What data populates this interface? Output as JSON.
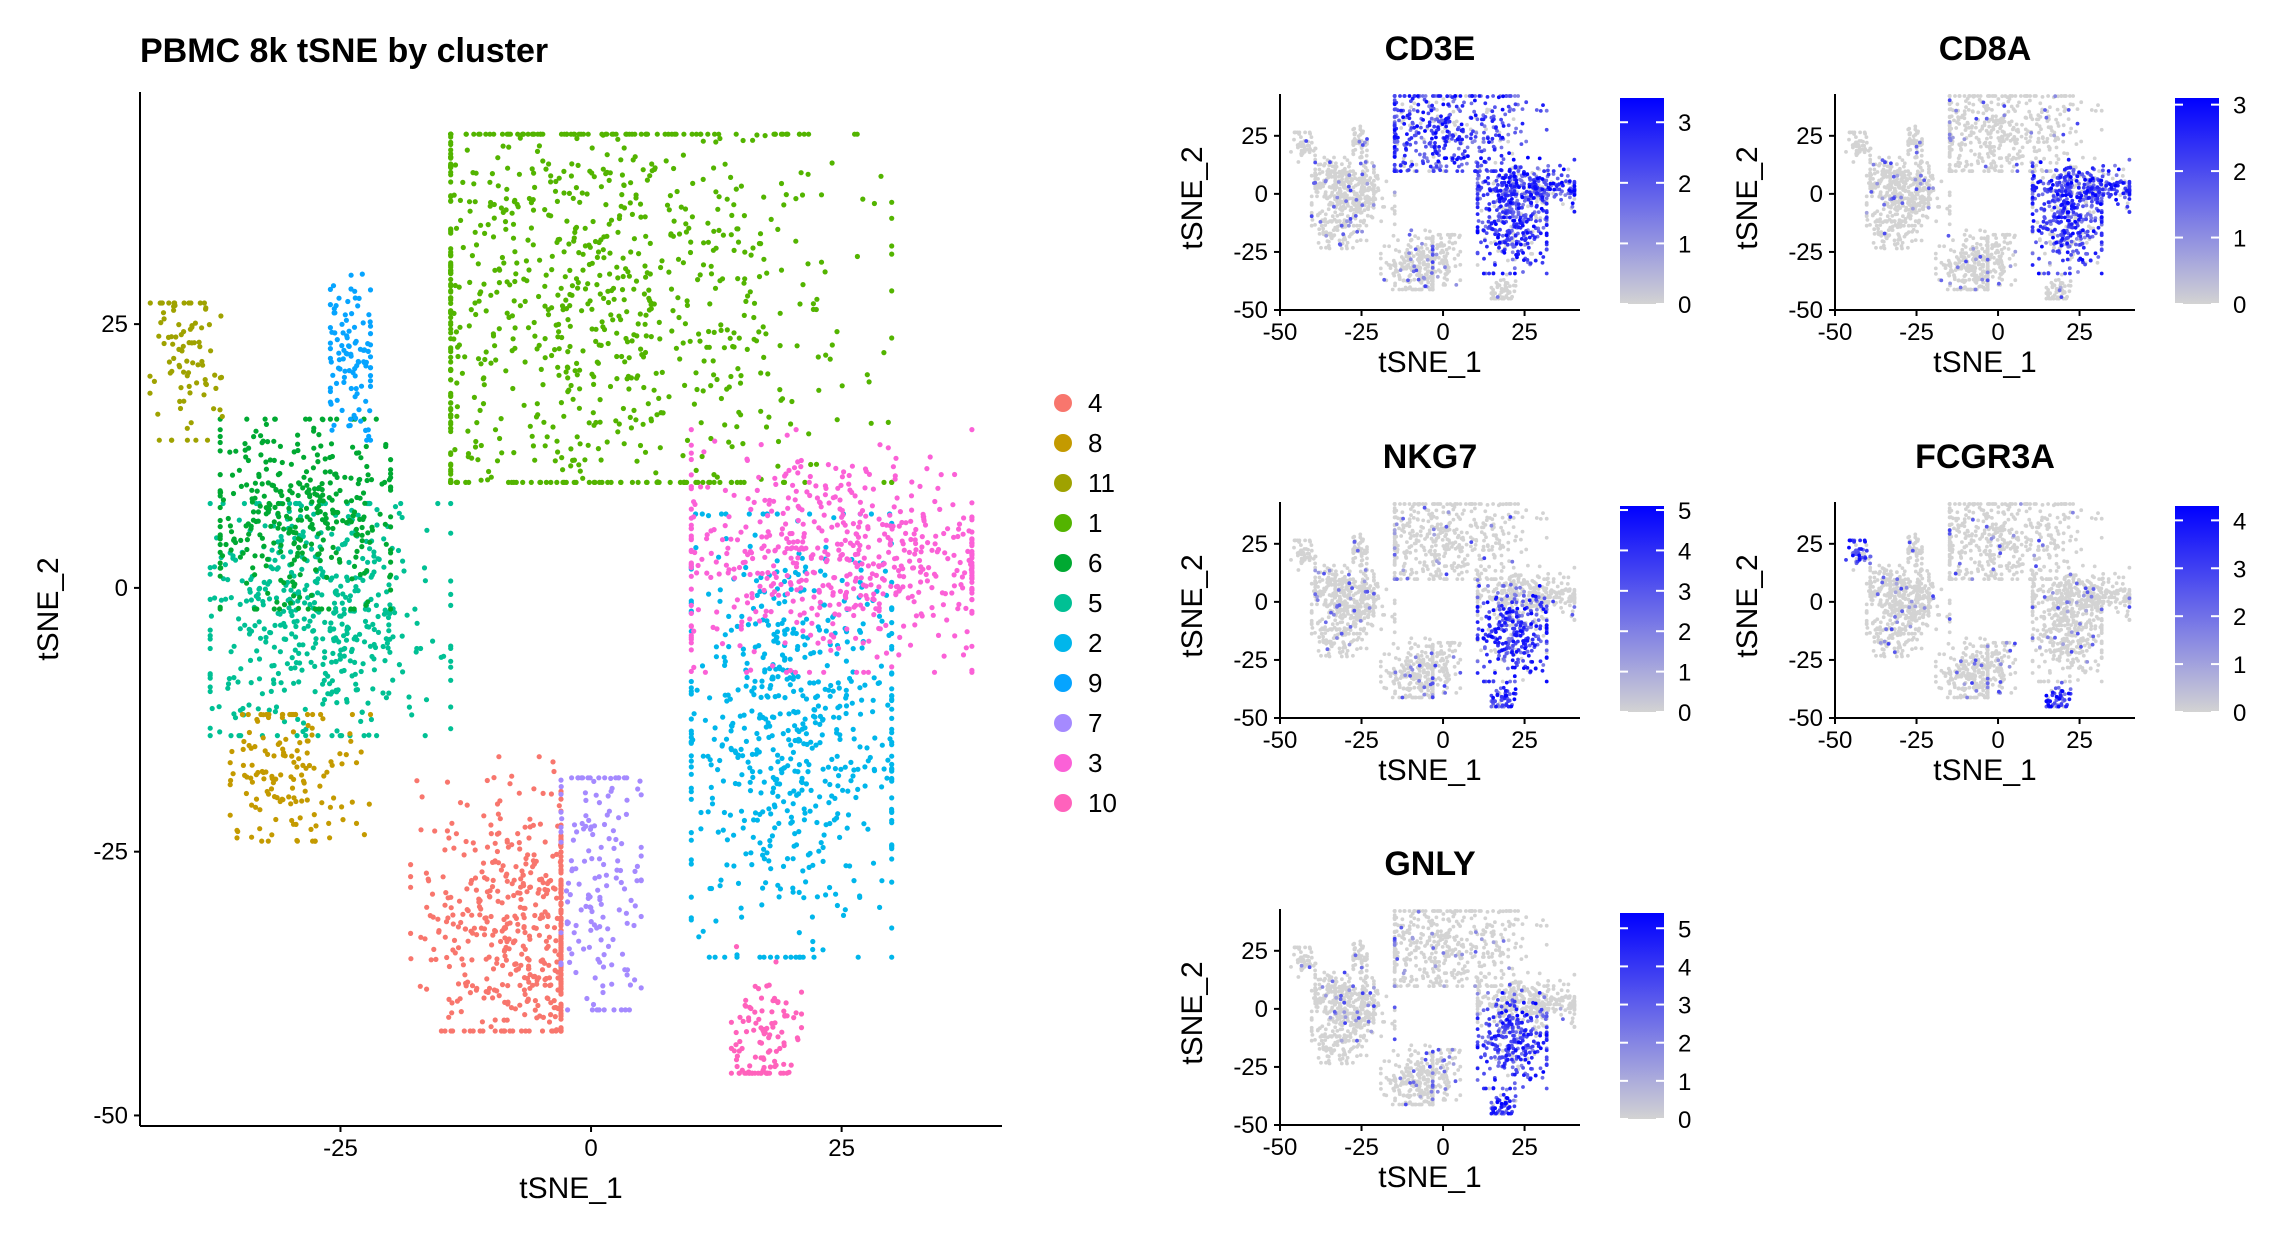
{
  "chart_data": [
    {
      "type": "scatter",
      "title": "PBMC 8k tSNE by cluster",
      "xlabel": "tSNE_1",
      "ylabel": "tSNE_2",
      "xlim": [
        -45,
        41
      ],
      "ylim": [
        -51,
        47
      ],
      "xticks": [
        -25,
        0,
        25
      ],
      "yticks": [
        -50,
        -25,
        0,
        25
      ],
      "grid": false,
      "legend": "right",
      "legend_order": [
        "4",
        "8",
        "11",
        "1",
        "6",
        "5",
        "2",
        "9",
        "7",
        "3",
        "10"
      ],
      "series": [
        {
          "name": "1",
          "color": "#53B400",
          "points": 950,
          "region": {
            "center": [
              0,
              27
            ],
            "spread": [
              13,
              12
            ],
            "x_range": [
              -14,
              30
            ],
            "y_range": [
              10,
              43
            ]
          }
        },
        {
          "name": "2",
          "color": "#00B6EB",
          "points": 640,
          "region": {
            "center": [
              20,
              -14
            ],
            "spread": [
              6,
              10
            ],
            "x_range": [
              10,
              30
            ],
            "y_range": [
              -35,
              7
            ]
          }
        },
        {
          "name": "3",
          "color": "#FB61D7",
          "points": 600,
          "region": {
            "center": [
              25,
              3
            ],
            "spread": [
              9,
              5
            ],
            "x_range": [
              10,
              38
            ],
            "y_range": [
              -8,
              15
            ]
          }
        },
        {
          "name": "4",
          "color": "#F8766D",
          "points": 520,
          "region": {
            "center": [
              -7,
              -32
            ],
            "spread": [
              5,
              6.5
            ],
            "x_range": [
              -18,
              -3
            ],
            "y_range": [
              -42,
              -16
            ]
          }
        },
        {
          "name": "5",
          "color": "#00C094",
          "points": 500,
          "region": {
            "center": [
              -27,
              -3
            ],
            "spread": [
              6,
              6
            ],
            "x_range": [
              -38,
              -14
            ],
            "y_range": [
              -14,
              8
            ]
          }
        },
        {
          "name": "6",
          "color": "#00A932",
          "points": 360,
          "region": {
            "center": [
              -29,
              7
            ],
            "spread": [
              5,
              5
            ],
            "x_range": [
              -37,
              -20
            ],
            "y_range": [
              -2,
              16
            ]
          }
        },
        {
          "name": "7",
          "color": "#A58AFF",
          "points": 160,
          "region": {
            "center": [
              1,
              -28
            ],
            "spread": [
              2.5,
              7
            ],
            "x_range": [
              -3,
              5
            ],
            "y_range": [
              -40,
              -18
            ]
          }
        },
        {
          "name": "8",
          "color": "#C49A00",
          "points": 150,
          "region": {
            "center": [
              -30,
              -17
            ],
            "spread": [
              3.5,
              4
            ],
            "x_range": [
              -36,
              -22
            ],
            "y_range": [
              -24,
              -12
            ]
          }
        },
        {
          "name": "9",
          "color": "#06A4FF",
          "points": 110,
          "region": {
            "center": [
              -24,
              22
            ],
            "spread": [
              1.5,
              4
            ],
            "x_range": [
              -26,
              -22
            ],
            "y_range": [
              14,
              40
            ]
          }
        },
        {
          "name": "10",
          "color": "#FF62BC",
          "points": 110,
          "region": {
            "center": [
              17,
              -43
            ],
            "spread": [
              2,
              3.5
            ],
            "x_range": [
              14,
              21
            ],
            "y_range": [
              -46,
              -34
            ]
          }
        },
        {
          "name": "11",
          "color": "#9FA200",
          "points": 90,
          "region": {
            "center": [
              -41,
              21
            ],
            "spread": [
              2,
              4
            ],
            "x_range": [
              -44,
              -36
            ],
            "y_range": [
              14,
              27
            ]
          }
        }
      ]
    },
    {
      "type": "scatter",
      "title": "CD3E",
      "xlabel": "tSNE_1",
      "ylabel": "tSNE_2",
      "xlim": [
        -50,
        42
      ],
      "ylim": [
        -50,
        43
      ],
      "xticks": [
        -50,
        -25,
        0,
        25
      ],
      "yticks": [
        -50,
        -25,
        0,
        25
      ],
      "colorbar": {
        "min": 0,
        "max": 3.4,
        "ticks": [
          0,
          1,
          2,
          3
        ],
        "low_color": "#D3D3D3",
        "high_color": "#0000FF"
      },
      "high_in_clusters": [
        "1",
        "2",
        "3"
      ]
    },
    {
      "type": "scatter",
      "title": "CD8A",
      "xlabel": "tSNE_1",
      "ylabel": "tSNE_2",
      "xlim": [
        -50,
        42
      ],
      "ylim": [
        -50,
        43
      ],
      "xticks": [
        -50,
        -25,
        0,
        25
      ],
      "yticks": [
        -50,
        -25,
        0,
        25
      ],
      "colorbar": {
        "min": 0,
        "max": 3.1,
        "ticks": [
          0,
          1,
          2,
          3
        ],
        "low_color": "#D3D3D3",
        "high_color": "#0000FF"
      },
      "high_in_clusters": [
        "2",
        "3"
      ]
    },
    {
      "type": "scatter",
      "title": "NKG7",
      "xlabel": "tSNE_1",
      "ylabel": "tSNE_2",
      "xlim": [
        -50,
        42
      ],
      "ylim": [
        -50,
        43
      ],
      "xticks": [
        -50,
        -25,
        0,
        25
      ],
      "yticks": [
        -50,
        -25,
        0,
        25
      ],
      "colorbar": {
        "min": 0,
        "max": 5.1,
        "ticks": [
          0,
          1,
          2,
          3,
          4,
          5
        ],
        "low_color": "#D3D3D3",
        "high_color": "#0000FF"
      },
      "high_in_clusters": [
        "2",
        "10"
      ]
    },
    {
      "type": "scatter",
      "title": "FCGR3A",
      "xlabel": "tSNE_1",
      "ylabel": "tSNE_2",
      "xlim": [
        -50,
        42
      ],
      "ylim": [
        -50,
        43
      ],
      "xticks": [
        -50,
        -25,
        0,
        25
      ],
      "yticks": [
        -50,
        -25,
        0,
        25
      ],
      "colorbar": {
        "min": 0,
        "max": 4.3,
        "ticks": [
          0,
          1,
          2,
          3,
          4
        ],
        "low_color": "#D3D3D3",
        "high_color": "#0000FF"
      },
      "high_in_clusters": [
        "11",
        "10"
      ]
    },
    {
      "type": "scatter",
      "title": "GNLY",
      "xlabel": "tSNE_1",
      "ylabel": "tSNE_2",
      "xlim": [
        -50,
        42
      ],
      "ylim": [
        -50,
        43
      ],
      "xticks": [
        -50,
        -25,
        0,
        25
      ],
      "yticks": [
        -50,
        -25,
        0,
        25
      ],
      "colorbar": {
        "min": 0,
        "max": 5.4,
        "ticks": [
          0,
          1,
          2,
          3,
          4,
          5
        ],
        "low_color": "#D3D3D3",
        "high_color": "#0000FF"
      },
      "high_in_clusters": [
        "10",
        "2"
      ]
    }
  ]
}
